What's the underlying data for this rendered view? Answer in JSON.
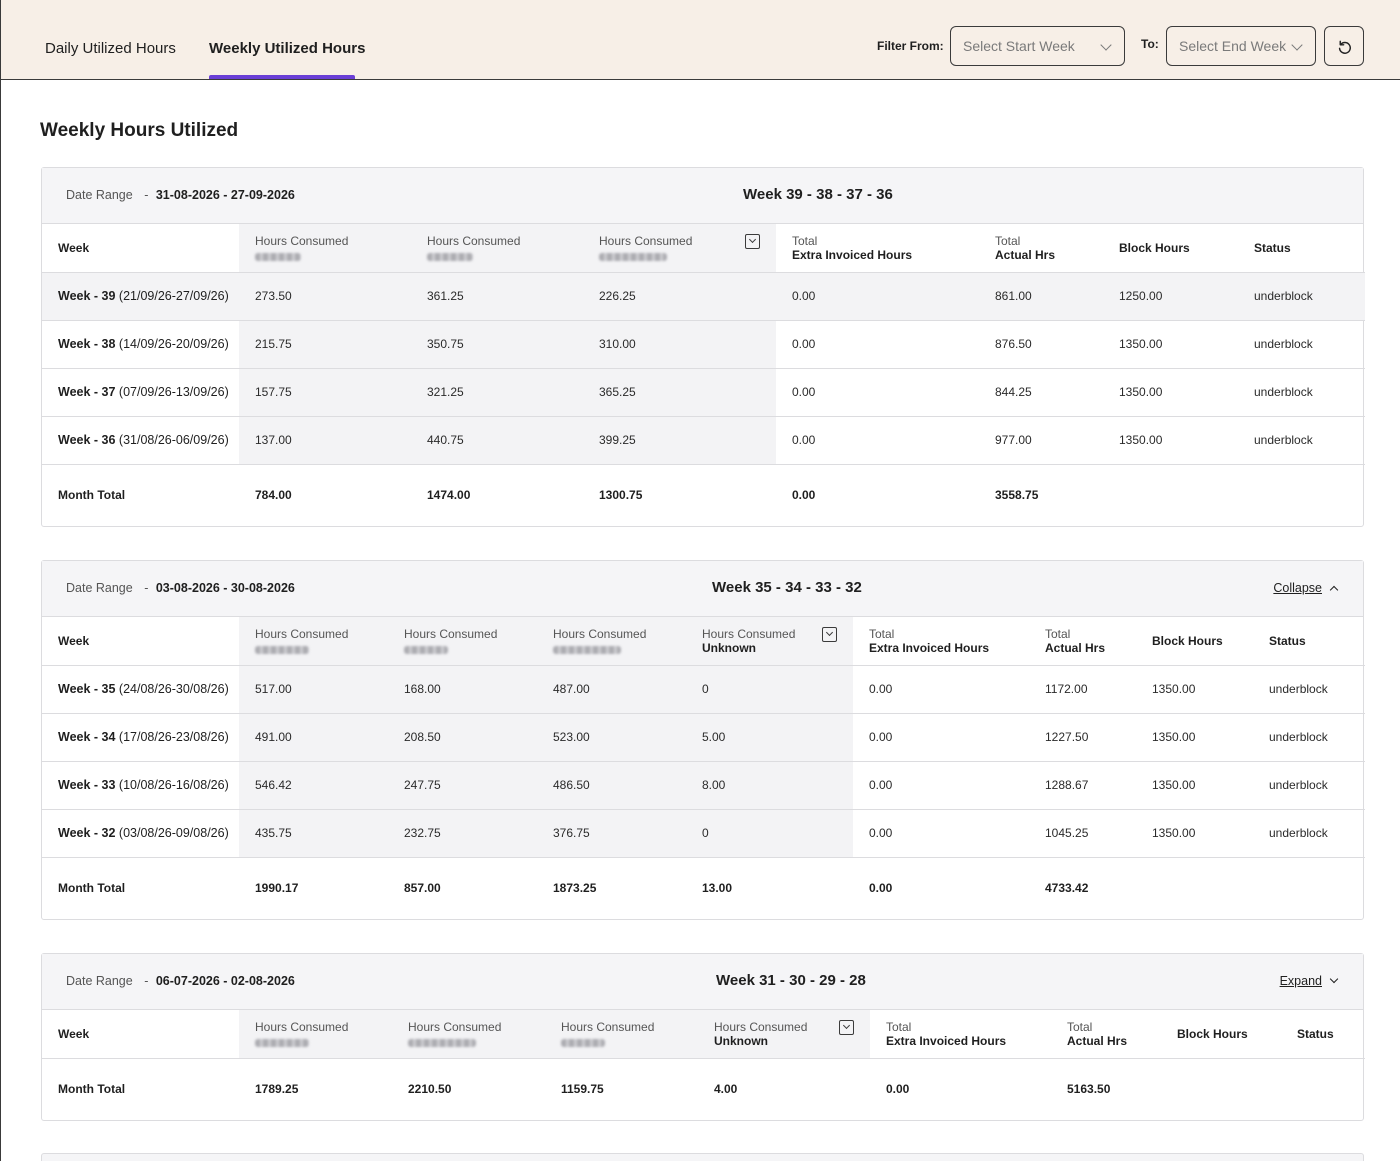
{
  "tabs": {
    "daily": "Daily Utilized Hours",
    "weekly": "Weekly Utilized Hours"
  },
  "filters": {
    "from_label": "Filter From:",
    "to_label": "To:",
    "start_placeholder": "Select Start Week",
    "end_placeholder": "Select End Week"
  },
  "page_title": "Weekly Hours Utilized",
  "accent_color": "#6a3fd6",
  "blocks": [
    {
      "range_label": "Date Range",
      "range_sep": "-",
      "range_value": "31-08-2026 - 27-09-2026",
      "title": "Week 39 - 38 - 37 - 36",
      "toggle": "",
      "headers": {
        "week": "Week",
        "hc": [
          "Hours Consumed",
          "Hours Consumed",
          "Hours Consumed"
        ],
        "extra_top": "Total",
        "extra_bottom": "Extra Invoiced Hours",
        "actual_top": "Total",
        "actual_bottom": "Actual Hrs",
        "block": "Block Hours",
        "status": "Status"
      },
      "rows": [
        {
          "week_bold": "Week - 39",
          "week_rest": " (21/09/26-27/09/26)",
          "hc": [
            "273.50",
            "361.25",
            "226.25"
          ],
          "extra": "0.00",
          "actual": "861.00",
          "block": "1250.00",
          "status": "underblock"
        },
        {
          "week_bold": "Week - 38",
          "week_rest": " (14/09/26-20/09/26)",
          "hc": [
            "215.75",
            "350.75",
            "310.00"
          ],
          "extra": "0.00",
          "actual": "876.50",
          "block": "1350.00",
          "status": "underblock"
        },
        {
          "week_bold": "Week - 37",
          "week_rest": " (07/09/26-13/09/26)",
          "hc": [
            "157.75",
            "321.25",
            "365.25"
          ],
          "extra": "0.00",
          "actual": "844.25",
          "block": "1350.00",
          "status": "underblock"
        },
        {
          "week_bold": "Week - 36",
          "week_rest": " (31/08/26-06/09/26)",
          "hc": [
            "137.00",
            "440.75",
            "399.25"
          ],
          "extra": "0.00",
          "actual": "977.00",
          "block": "1350.00",
          "status": "underblock"
        }
      ],
      "total": {
        "label": "Month Total",
        "hc": [
          "784.00",
          "1474.00",
          "1300.75"
        ],
        "extra": "0.00",
        "actual": "3558.75"
      }
    },
    {
      "range_label": "Date Range",
      "range_sep": "-",
      "range_value": "03-08-2026 - 30-08-2026",
      "title": "Week 35 - 34 - 33 - 32",
      "toggle": "Collapse",
      "headers": {
        "week": "Week",
        "hc": [
          "Hours Consumed",
          "Hours Consumed",
          "Hours Consumed",
          "Hours Consumed"
        ],
        "unknown": "Unknown",
        "extra_top": "Total",
        "extra_bottom": "Extra Invoiced Hours",
        "actual_top": "Total",
        "actual_bottom": "Actual Hrs",
        "block": "Block Hours",
        "status": "Status"
      },
      "rows": [
        {
          "week_bold": "Week - 35",
          "week_rest": " (24/08/26-30/08/26)",
          "hc": [
            "517.00",
            "168.00",
            "487.00",
            "0"
          ],
          "extra": "0.00",
          "actual": "1172.00",
          "block": "1350.00",
          "status": "underblock"
        },
        {
          "week_bold": "Week - 34",
          "week_rest": " (17/08/26-23/08/26)",
          "hc": [
            "491.00",
            "208.50",
            "523.00",
            "5.00"
          ],
          "extra": "0.00",
          "actual": "1227.50",
          "block": "1350.00",
          "status": "underblock"
        },
        {
          "week_bold": "Week - 33",
          "week_rest": " (10/08/26-16/08/26)",
          "hc": [
            "546.42",
            "247.75",
            "486.50",
            "8.00"
          ],
          "extra": "0.00",
          "actual": "1288.67",
          "block": "1350.00",
          "status": "underblock"
        },
        {
          "week_bold": "Week - 32",
          "week_rest": " (03/08/26-09/08/26)",
          "hc": [
            "435.75",
            "232.75",
            "376.75",
            "0"
          ],
          "extra": "0.00",
          "actual": "1045.25",
          "block": "1350.00",
          "status": "underblock"
        }
      ],
      "total": {
        "label": "Month Total",
        "hc": [
          "1990.17",
          "857.00",
          "1873.25",
          "13.00"
        ],
        "extra": "0.00",
        "actual": "4733.42"
      }
    },
    {
      "range_label": "Date Range",
      "range_sep": "-",
      "range_value": "06-07-2026 - 02-08-2026",
      "title": "Week 31 - 30 - 29 - 28",
      "toggle": "Expand",
      "headers": {
        "week": "Week",
        "hc": [
          "Hours Consumed",
          "Hours Consumed",
          "Hours Consumed",
          "Hours Consumed"
        ],
        "unknown": "Unknown",
        "extra_top": "Total",
        "extra_bottom": "Extra Invoiced Hours",
        "actual_top": "Total",
        "actual_bottom": "Actual Hrs",
        "block": "Block Hours",
        "status": "Status"
      },
      "rows": [],
      "total": {
        "label": "Month Total",
        "hc": [
          "1789.25",
          "2210.50",
          "1159.75",
          "4.00"
        ],
        "extra": "0.00",
        "actual": "5163.50"
      }
    }
  ]
}
